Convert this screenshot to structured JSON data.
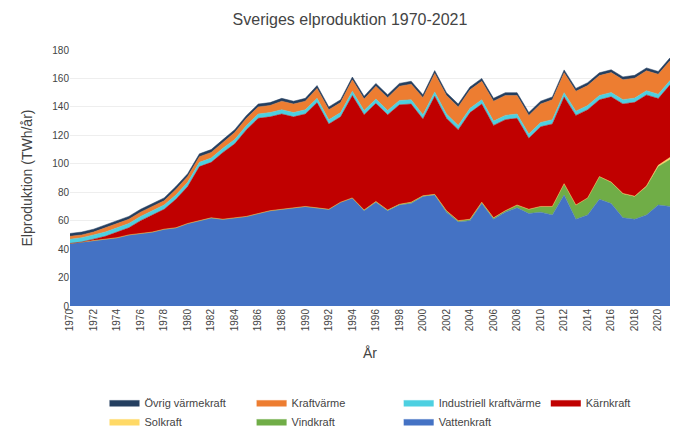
{
  "chart_data": {
    "type": "area",
    "title": "Sveriges elproduktion 1970-2021",
    "xlabel": "År",
    "ylabel": "Elproduktion (TWh/år)",
    "stacked": true,
    "grid": true,
    "legend": "bottom",
    "x": [
      1970,
      1971,
      1972,
      1973,
      1974,
      1975,
      1976,
      1977,
      1978,
      1979,
      1980,
      1981,
      1982,
      1983,
      1984,
      1985,
      1986,
      1987,
      1988,
      1989,
      1990,
      1991,
      1992,
      1993,
      1994,
      1995,
      1996,
      1997,
      1998,
      1999,
      2000,
      2001,
      2002,
      2003,
      2004,
      2005,
      2006,
      2007,
      2008,
      2009,
      2010,
      2011,
      2012,
      2013,
      2014,
      2015,
      2016,
      2017,
      2018,
      2019,
      2020,
      2021
    ],
    "xlim": [
      1970,
      2021
    ],
    "xticks": [
      1970,
      1972,
      1974,
      1976,
      1978,
      1980,
      1982,
      1984,
      1986,
      1988,
      1990,
      1992,
      1994,
      1996,
      1998,
      2000,
      2002,
      2004,
      2006,
      2008,
      2010,
      2012,
      2014,
      2016,
      2018,
      2020
    ],
    "ylim": [
      0,
      180
    ],
    "yticks": [
      0,
      20,
      40,
      60,
      80,
      100,
      120,
      140,
      160,
      180
    ],
    "series": [
      {
        "name": "Vattenkraft",
        "color": "#4472C4",
        "values": [
          44,
          45,
          46,
          47,
          48,
          50,
          51,
          52,
          54,
          55,
          58,
          60,
          62,
          61,
          62,
          63,
          65,
          67,
          68,
          69,
          70,
          69,
          68,
          73,
          76,
          67,
          73,
          67,
          71,
          72,
          77,
          78,
          66,
          59,
          60,
          72,
          61,
          66,
          69,
          65,
          66,
          64,
          78,
          61,
          64,
          75,
          72,
          62,
          61,
          64,
          71,
          70
        ]
      },
      {
        "name": "Vindkraft",
        "color": "#70AD47",
        "values": [
          0,
          0,
          0,
          0,
          0,
          0,
          0,
          0,
          0,
          0,
          0,
          0,
          0,
          0,
          0,
          0,
          0,
          0,
          0,
          0,
          0,
          0,
          0,
          0,
          0,
          0.5,
          0.5,
          0.5,
          0.5,
          1,
          0.5,
          0.5,
          1,
          1,
          1,
          1,
          1,
          1,
          2,
          3,
          4,
          6,
          8,
          10,
          12,
          16,
          15,
          17,
          16,
          20,
          27,
          33
        ]
      },
      {
        "name": "Solkraft",
        "color": "#FFD966",
        "values": [
          0,
          0,
          0,
          0,
          0,
          0,
          0,
          0,
          0,
          0,
          0,
          0,
          0,
          0,
          0,
          0,
          0,
          0,
          0,
          0,
          0,
          0,
          0,
          0,
          0,
          0,
          0,
          0,
          0,
          0,
          0,
          0,
          0,
          0,
          0,
          0,
          0,
          0,
          0,
          0,
          0,
          0,
          0,
          0,
          0,
          0,
          0.1,
          0.1,
          0.2,
          0.4,
          0.9,
          1.5
        ]
      },
      {
        "name": "Kärnkraft",
        "color": "#C00000",
        "values": [
          0,
          0,
          1,
          2,
          4,
          5,
          9,
          12,
          14,
          20,
          26,
          38,
          39,
          47,
          52,
          61,
          67,
          66,
          67,
          64,
          65,
          74,
          60,
          60,
          72,
          67,
          69,
          67,
          70,
          69,
          54,
          69,
          65,
          64,
          75,
          69,
          65,
          64,
          61,
          50,
          56,
          58,
          61,
          63,
          62,
          54,
          60,
          63,
          66,
          64,
          47,
          51
        ]
      },
      {
        "name": "Industriell kraftvärme",
        "color": "#4DD0E1",
        "values": [
          3,
          3,
          3,
          3,
          3,
          3,
          3,
          3,
          3,
          3,
          3,
          3,
          3,
          3,
          3,
          3,
          3,
          3,
          3,
          3,
          3,
          3,
          3,
          3,
          3,
          3,
          3,
          3,
          3,
          3,
          3,
          3,
          3,
          3,
          3,
          3,
          3,
          3,
          3,
          3,
          3,
          3,
          3,
          3,
          3,
          3,
          3,
          3,
          3,
          3,
          3,
          3
        ]
      },
      {
        "name": "Kraftvärme",
        "color": "#ED7D31",
        "values": [
          2,
          2,
          2,
          3,
          3,
          3,
          3,
          3,
          3,
          4,
          4,
          4,
          4,
          4,
          5,
          5,
          5,
          5,
          6,
          6,
          6,
          7,
          7,
          7,
          8,
          8,
          9,
          9,
          10,
          11,
          12,
          13,
          13,
          13,
          13,
          13,
          14,
          14,
          13,
          13,
          13,
          14,
          14,
          14,
          14,
          14,
          14,
          14,
          14,
          14,
          14,
          14
        ]
      },
      {
        "name": "Övrig värmekraft",
        "color": "#243F60",
        "values": [
          2,
          2,
          2,
          2,
          2,
          2,
          2,
          2,
          2,
          2,
          2,
          2,
          2,
          2,
          2,
          2,
          2,
          2,
          2,
          2,
          2,
          2,
          2,
          2,
          2,
          2,
          2,
          2,
          2,
          2,
          2,
          2,
          2,
          2,
          2,
          2,
          2,
          2,
          2,
          2,
          2,
          2,
          2,
          2,
          2,
          2,
          2,
          2,
          2,
          2,
          2,
          2
        ]
      }
    ]
  }
}
